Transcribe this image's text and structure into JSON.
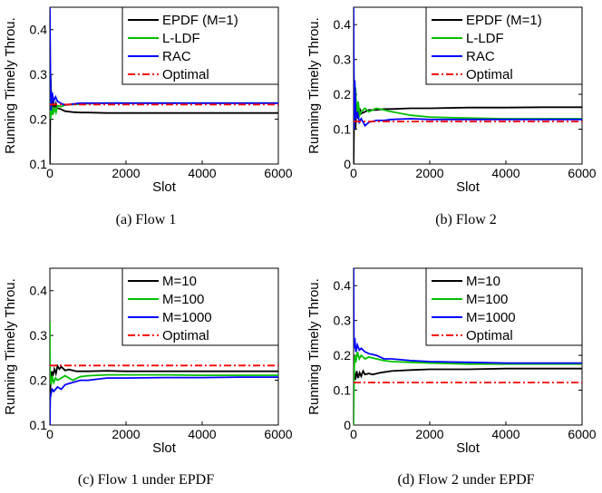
{
  "chart_data": [
    {
      "type": "line",
      "caption": "(a)  Flow 1",
      "xlabel": "Slot",
      "ylabel": "Running Timely Throu.",
      "xlim": [
        0,
        6000
      ],
      "ylim": [
        0.1,
        0.45
      ],
      "xticks": [
        0,
        2000,
        4000,
        6000
      ],
      "yticks": [
        0.1,
        0.2,
        0.3,
        0.4
      ],
      "ytick_labels": [
        "0.1",
        "0.2",
        "0.3",
        "0.4"
      ],
      "legend_position": "top-right",
      "series": [
        {
          "name": "EPDF (M=1)",
          "color": "#000000",
          "style": "solid",
          "x": [
            0,
            20,
            50,
            80,
            120,
            160,
            200,
            300,
            400,
            600,
            800,
            1000,
            1500,
            2000,
            3000,
            4000,
            5000,
            6000
          ],
          "y": [
            0.1,
            0.3,
            0.21,
            0.25,
            0.22,
            0.235,
            0.225,
            0.222,
            0.218,
            0.216,
            0.215,
            0.215,
            0.214,
            0.214,
            0.214,
            0.214,
            0.214,
            0.214
          ]
        },
        {
          "name": "L-LDF",
          "color": "#00c000",
          "style": "solid",
          "x": [
            0,
            20,
            50,
            80,
            120,
            160,
            200,
            300,
            400,
            600,
            800,
            1000,
            1500,
            2000,
            3000,
            4000,
            5000,
            6000
          ],
          "y": [
            0.25,
            0.2,
            0.23,
            0.21,
            0.225,
            0.215,
            0.23,
            0.228,
            0.232,
            0.233,
            0.234,
            0.235,
            0.236,
            0.236,
            0.236,
            0.236,
            0.236,
            0.236
          ]
        },
        {
          "name": "RAC",
          "color": "#0000ff",
          "style": "solid",
          "x": [
            0,
            15,
            30,
            60,
            100,
            150,
            200,
            300,
            400,
            600,
            800,
            1000,
            1500,
            2000,
            3000,
            4000,
            5000,
            6000
          ],
          "y": [
            0.45,
            0.3,
            0.22,
            0.26,
            0.24,
            0.25,
            0.24,
            0.235,
            0.232,
            0.234,
            0.236,
            0.236,
            0.236,
            0.236,
            0.236,
            0.236,
            0.236,
            0.236
          ]
        },
        {
          "name": "Optimal",
          "color": "#ff0000",
          "style": "dashdot",
          "x": [
            0,
            6000
          ],
          "y": [
            0.233,
            0.233
          ]
        }
      ]
    },
    {
      "type": "line",
      "caption": "(b)  Flow 2",
      "xlabel": "Slot",
      "ylabel": "Running Timely Throu.",
      "xlim": [
        0,
        6000
      ],
      "ylim": [
        0,
        0.45
      ],
      "xticks": [
        0,
        2000,
        4000,
        6000
      ],
      "yticks": [
        0,
        0.1,
        0.2,
        0.3,
        0.4
      ],
      "ytick_labels": [
        "0",
        "0.1",
        "0.2",
        "0.3",
        "0.4"
      ],
      "legend_position": "top-right",
      "series": [
        {
          "name": "EPDF (M=1)",
          "color": "#000000",
          "style": "solid",
          "x": [
            0,
            20,
            50,
            80,
            120,
            160,
            200,
            300,
            400,
            600,
            800,
            1000,
            1500,
            2000,
            3000,
            4000,
            5000,
            6000
          ],
          "y": [
            0.0,
            0.18,
            0.1,
            0.17,
            0.13,
            0.16,
            0.145,
            0.15,
            0.155,
            0.155,
            0.158,
            0.158,
            0.16,
            0.16,
            0.162,
            0.162,
            0.163,
            0.163
          ]
        },
        {
          "name": "L-LDF",
          "color": "#00c000",
          "style": "solid",
          "x": [
            0,
            20,
            50,
            80,
            120,
            160,
            200,
            300,
            400,
            600,
            800,
            1000,
            1500,
            2000,
            3000,
            4000,
            5000,
            6000
          ],
          "y": [
            0.33,
            0.15,
            0.22,
            0.14,
            0.18,
            0.14,
            0.15,
            0.16,
            0.15,
            0.16,
            0.155,
            0.15,
            0.14,
            0.135,
            0.132,
            0.13,
            0.13,
            0.13
          ]
        },
        {
          "name": "RAC",
          "color": "#0000ff",
          "style": "solid",
          "x": [
            0,
            15,
            30,
            60,
            100,
            150,
            200,
            300,
            400,
            600,
            800,
            1000,
            1500,
            2000,
            3000,
            4000,
            5000,
            6000
          ],
          "y": [
            0.45,
            0.1,
            0.24,
            0.13,
            0.15,
            0.12,
            0.13,
            0.11,
            0.12,
            0.125,
            0.125,
            0.128,
            0.13,
            0.128,
            0.128,
            0.128,
            0.128,
            0.128
          ]
        },
        {
          "name": "Optimal",
          "color": "#ff0000",
          "style": "dashdot",
          "x": [
            0,
            6000
          ],
          "y": [
            0.122,
            0.122
          ]
        }
      ]
    },
    {
      "type": "line",
      "caption": "(c)  Flow 1 under EPDF",
      "xlabel": "Slot",
      "ylabel": "Running Timely Throu.",
      "xlim": [
        0,
        6000
      ],
      "ylim": [
        0.1,
        0.45
      ],
      "xticks": [
        0,
        2000,
        4000,
        6000
      ],
      "yticks": [
        0.1,
        0.2,
        0.3,
        0.4
      ],
      "ytick_labels": [
        "0.1",
        "0.2",
        "0.3",
        "0.4"
      ],
      "legend_position": "top-right",
      "series": [
        {
          "name": "M=10",
          "color": "#000000",
          "style": "solid",
          "x": [
            0,
            20,
            50,
            80,
            120,
            160,
            200,
            250,
            300,
            400,
            500,
            700,
            1000,
            1500,
            2000,
            3000,
            4000,
            5000,
            6000
          ],
          "y": [
            0.15,
            0.2,
            0.22,
            0.21,
            0.225,
            0.215,
            0.232,
            0.225,
            0.23,
            0.222,
            0.224,
            0.22,
            0.22,
            0.221,
            0.22,
            0.22,
            0.22,
            0.22,
            0.22
          ]
        },
        {
          "name": "M=100",
          "color": "#00c000",
          "style": "solid",
          "x": [
            0,
            10,
            30,
            60,
            100,
            150,
            200,
            300,
            400,
            600,
            800,
            1000,
            1500,
            2000,
            3000,
            4000,
            5000,
            6000
          ],
          "y": [
            0.33,
            0.2,
            0.19,
            0.21,
            0.195,
            0.205,
            0.2,
            0.205,
            0.21,
            0.2,
            0.208,
            0.21,
            0.212,
            0.212,
            0.212,
            0.211,
            0.211,
            0.211
          ]
        },
        {
          "name": "M=1000",
          "color": "#0000ff",
          "style": "solid",
          "x": [
            0,
            10,
            30,
            60,
            100,
            150,
            200,
            300,
            400,
            600,
            800,
            1000,
            1500,
            2000,
            3000,
            4000,
            5000,
            6000
          ],
          "y": [
            0.1,
            0.16,
            0.17,
            0.18,
            0.175,
            0.18,
            0.185,
            0.18,
            0.19,
            0.195,
            0.2,
            0.2,
            0.205,
            0.205,
            0.206,
            0.206,
            0.207,
            0.207
          ]
        },
        {
          "name": "Optimal",
          "color": "#ff0000",
          "style": "dashdot",
          "x": [
            0,
            6000
          ],
          "y": [
            0.233,
            0.233
          ]
        }
      ]
    },
    {
      "type": "line",
      "caption": "(d)  Flow 2 under EPDF",
      "xlabel": "Slot",
      "ylabel": "Running Timely Throu.",
      "xlim": [
        0,
        6000
      ],
      "ylim": [
        0,
        0.45
      ],
      "xticks": [
        0,
        2000,
        4000,
        6000
      ],
      "yticks": [
        0,
        0.1,
        0.2,
        0.3,
        0.4
      ],
      "ytick_labels": [
        "0",
        "0.1",
        "0.2",
        "0.3",
        "0.4"
      ],
      "legend_position": "top-right",
      "series": [
        {
          "name": "M=10",
          "color": "#000000",
          "style": "solid",
          "x": [
            0,
            20,
            50,
            80,
            120,
            160,
            200,
            250,
            300,
            400,
            500,
            700,
            1000,
            1500,
            2000,
            3000,
            4000,
            5000,
            6000
          ],
          "y": [
            0.1,
            0.15,
            0.13,
            0.155,
            0.135,
            0.15,
            0.14,
            0.155,
            0.145,
            0.148,
            0.145,
            0.15,
            0.155,
            0.158,
            0.16,
            0.16,
            0.162,
            0.162,
            0.162
          ]
        },
        {
          "name": "M=100",
          "color": "#00c000",
          "style": "solid",
          "x": [
            0,
            15,
            30,
            60,
            100,
            150,
            200,
            300,
            400,
            600,
            800,
            1000,
            1500,
            2000,
            3000,
            4000,
            5000,
            6000
          ],
          "y": [
            0.0,
            0.15,
            0.2,
            0.18,
            0.21,
            0.19,
            0.2,
            0.19,
            0.195,
            0.19,
            0.185,
            0.182,
            0.18,
            0.178,
            0.175,
            0.175,
            0.175,
            0.175
          ]
        },
        {
          "name": "M=1000",
          "color": "#0000ff",
          "style": "solid",
          "x": [
            0,
            10,
            30,
            60,
            100,
            150,
            200,
            300,
            400,
            600,
            800,
            1000,
            1500,
            2000,
            3000,
            4000,
            5000,
            6000
          ],
          "y": [
            0.45,
            0.22,
            0.25,
            0.21,
            0.23,
            0.215,
            0.22,
            0.21,
            0.205,
            0.2,
            0.19,
            0.19,
            0.185,
            0.182,
            0.18,
            0.178,
            0.178,
            0.178
          ]
        },
        {
          "name": "Optimal",
          "color": "#ff0000",
          "style": "dashdot",
          "x": [
            0,
            6000
          ],
          "y": [
            0.122,
            0.122
          ]
        }
      ]
    }
  ]
}
